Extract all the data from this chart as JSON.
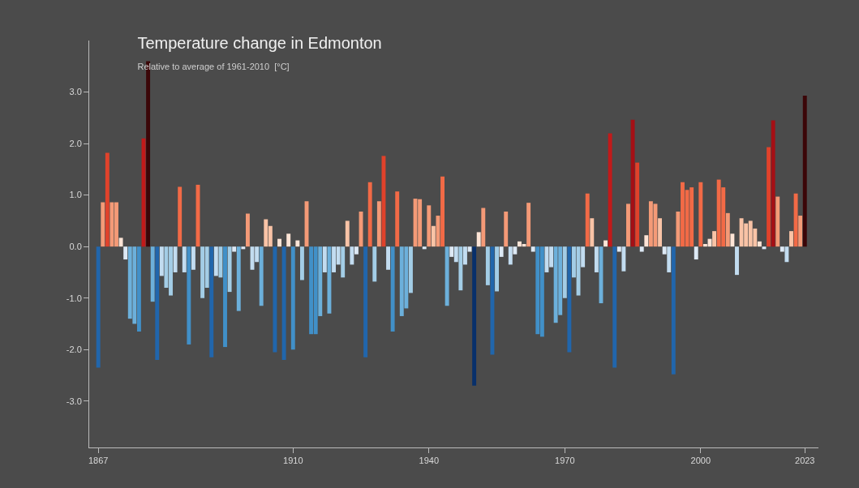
{
  "chart_data": {
    "type": "bar",
    "title": "Temperature change in Edmonton",
    "subtitle": "Relative to average of 1961-2010  [°C]",
    "x": [
      1867,
      1868,
      1869,
      1870,
      1871,
      1872,
      1873,
      1874,
      1875,
      1876,
      1877,
      1878,
      1879,
      1880,
      1881,
      1882,
      1883,
      1884,
      1885,
      1886,
      1887,
      1888,
      1889,
      1890,
      1891,
      1892,
      1893,
      1894,
      1895,
      1896,
      1897,
      1898,
      1899,
      1900,
      1901,
      1902,
      1903,
      1904,
      1905,
      1906,
      1907,
      1908,
      1909,
      1910,
      1911,
      1912,
      1913,
      1914,
      1915,
      1916,
      1917,
      1918,
      1919,
      1920,
      1921,
      1922,
      1923,
      1924,
      1925,
      1926,
      1927,
      1928,
      1929,
      1930,
      1931,
      1932,
      1933,
      1934,
      1935,
      1936,
      1937,
      1938,
      1939,
      1940,
      1941,
      1942,
      1943,
      1944,
      1945,
      1946,
      1947,
      1948,
      1949,
      1950,
      1951,
      1952,
      1953,
      1954,
      1955,
      1956,
      1957,
      1958,
      1959,
      1960,
      1961,
      1962,
      1963,
      1964,
      1965,
      1966,
      1967,
      1968,
      1969,
      1970,
      1971,
      1972,
      1973,
      1974,
      1975,
      1976,
      1977,
      1978,
      1979,
      1980,
      1981,
      1982,
      1983,
      1984,
      1985,
      1986,
      1987,
      1988,
      1989,
      1990,
      1991,
      1992,
      1993,
      1994,
      1995,
      1996,
      1997,
      1998,
      1999,
      2000,
      2001,
      2002,
      2003,
      2004,
      2005,
      2006,
      2007,
      2008,
      2009,
      2010,
      2011,
      2012,
      2013,
      2014,
      2015,
      2016,
      2017,
      2018,
      2019,
      2020,
      2021,
      2022,
      2023
    ],
    "values": [
      -2.35,
      0.86,
      1.82,
      0.86,
      0.86,
      0.17,
      -0.25,
      -1.4,
      -1.5,
      -1.65,
      2.1,
      3.6,
      -1.07,
      -2.2,
      -0.57,
      -0.8,
      -0.95,
      -0.5,
      1.16,
      -0.5,
      -1.9,
      -0.45,
      1.2,
      -1.0,
      -0.8,
      -2.15,
      -0.57,
      -0.6,
      -1.95,
      -0.88,
      -0.1,
      -1.25,
      -0.05,
      0.64,
      -0.45,
      -0.3,
      -1.15,
      0.53,
      0.4,
      -2.05,
      0.15,
      -2.2,
      0.25,
      -2.0,
      0.12,
      -0.65,
      0.88,
      -1.7,
      -1.7,
      -1.35,
      -0.5,
      -1.3,
      -0.5,
      -0.35,
      -0.6,
      0.5,
      -0.35,
      -0.15,
      0.68,
      -2.15,
      1.25,
      -0.68,
      0.88,
      1.76,
      -0.45,
      -1.65,
      1.07,
      -1.35,
      -1.2,
      -0.9,
      0.93,
      0.92,
      -0.05,
      0.8,
      0.4,
      0.6,
      1.36,
      -1.15,
      -0.2,
      -0.3,
      -0.85,
      -0.35,
      -0.1,
      -2.7,
      0.28,
      0.75,
      -0.75,
      -2.1,
      -0.87,
      -0.2,
      0.68,
      -0.35,
      -0.15,
      0.1,
      0.05,
      0.85,
      -0.1,
      -1.7,
      -1.75,
      -0.5,
      -0.4,
      -1.48,
      -1.33,
      -1.0,
      -2.05,
      -0.6,
      -0.95,
      -0.4,
      1.03,
      0.55,
      -0.5,
      -1.1,
      0.12,
      2.2,
      -2.35,
      -0.1,
      -0.48,
      0.83,
      2.46,
      1.63,
      -0.1,
      0.22,
      0.88,
      0.83,
      0.55,
      -0.15,
      -0.5,
      -2.48,
      0.68,
      1.25,
      1.1,
      1.15,
      -0.25,
      1.25,
      0.05,
      0.15,
      0.3,
      1.3,
      1.15,
      0.65,
      0.25,
      -0.55,
      0.55,
      0.45,
      0.5,
      0.35,
      0.1,
      -0.05,
      1.93,
      2.45,
      0.97,
      -0.1,
      -0.3,
      0.3,
      1.03,
      0.6,
      2.93
    ],
    "colors": [
      "#2166ac",
      "#f49a77",
      "#e0422b",
      "#f49a77",
      "#f49a77",
      "#fde4d6",
      "#dde9f5",
      "#6cb0db",
      "#6cb0db",
      "#4190c8",
      "#c21a1a",
      "#3b0608",
      "#6cb0db",
      "#2166ac",
      "#c2dcf0",
      "#a3cde6",
      "#a3cde6",
      "#c2dcf0",
      "#f26a46",
      "#c2dcf0",
      "#4190c8",
      "#c2dcf0",
      "#f26a46",
      "#a3cde6",
      "#a3cde6",
      "#2166ac",
      "#c2dcf0",
      "#a3cde6",
      "#4190c8",
      "#a3cde6",
      "#dde9f5",
      "#6cb0db",
      "#dde9f5",
      "#f49a77",
      "#c2dcf0",
      "#c2dcf0",
      "#6cb0db",
      "#f9c3a6",
      "#f9c3a6",
      "#2166ac",
      "#fde4d6",
      "#2166ac",
      "#fde4d6",
      "#4190c8",
      "#fde4d6",
      "#a3cde6",
      "#f49a77",
      "#4190c8",
      "#4190c8",
      "#6cb0db",
      "#c2dcf0",
      "#6cb0db",
      "#c2dcf0",
      "#c2dcf0",
      "#a3cde6",
      "#f9c3a6",
      "#c2dcf0",
      "#dde9f5",
      "#f49a77",
      "#2166ac",
      "#f26a46",
      "#a3cde6",
      "#f49a77",
      "#e0422b",
      "#c2dcf0",
      "#4190c8",
      "#f26a46",
      "#6cb0db",
      "#6cb0db",
      "#a3cde6",
      "#f49a77",
      "#f49a77",
      "#dde9f5",
      "#f49a77",
      "#f9c3a6",
      "#f49a77",
      "#f26a46",
      "#6cb0db",
      "#dde9f5",
      "#c2dcf0",
      "#a3cde6",
      "#c2dcf0",
      "#dde9f5",
      "#08306b",
      "#fde4d6",
      "#f49a77",
      "#a3cde6",
      "#2166ac",
      "#a3cde6",
      "#dde9f5",
      "#f49a77",
      "#c2dcf0",
      "#dde9f5",
      "#fde4d6",
      "#fde4d6",
      "#f49a77",
      "#dde9f5",
      "#4190c8",
      "#4190c8",
      "#c2dcf0",
      "#c2dcf0",
      "#6cb0db",
      "#6cb0db",
      "#a3cde6",
      "#2166ac",
      "#a3cde6",
      "#a3cde6",
      "#c2dcf0",
      "#f26a46",
      "#f9c3a6",
      "#c2dcf0",
      "#6cb0db",
      "#fde4d6",
      "#c21a1a",
      "#2166ac",
      "#dde9f5",
      "#c2dcf0",
      "#f49a77",
      "#a50f15",
      "#e0422b",
      "#dde9f5",
      "#fde4d6",
      "#f49a77",
      "#f49a77",
      "#f9c3a6",
      "#dde9f5",
      "#c2dcf0",
      "#2166ac",
      "#f49a77",
      "#f26a46",
      "#f26a46",
      "#f26a46",
      "#dde9f5",
      "#f26a46",
      "#fde4d6",
      "#fde4d6",
      "#f9c3a6",
      "#f26a46",
      "#f26a46",
      "#f49a77",
      "#fde4d6",
      "#c2dcf0",
      "#f9c3a6",
      "#f9c3a6",
      "#f9c3a6",
      "#f9c3a6",
      "#fde4d6",
      "#dde9f5",
      "#e0422b",
      "#a50f15",
      "#f49a77",
      "#dde9f5",
      "#c2dcf0",
      "#f9c3a6",
      "#f26a46",
      "#f49a77",
      "#3b0608"
    ],
    "xlim": [
      1865,
      2026
    ],
    "xticks": [
      1867,
      1910,
      1940,
      1970,
      2000,
      2023
    ],
    "ylim": [
      -3.9,
      4.0
    ],
    "yticks": [
      {
        "value": -3,
        "label": "-3.0"
      },
      {
        "value": -2,
        "label": "-2.0"
      },
      {
        "value": -1,
        "label": "-1.0"
      },
      {
        "value": 0,
        "label": "0.0"
      },
      {
        "value": 1,
        "label": "1.0"
      },
      {
        "value": 2,
        "label": "2.0"
      },
      {
        "value": 3,
        "label": "3.0"
      }
    ],
    "grid": false
  }
}
